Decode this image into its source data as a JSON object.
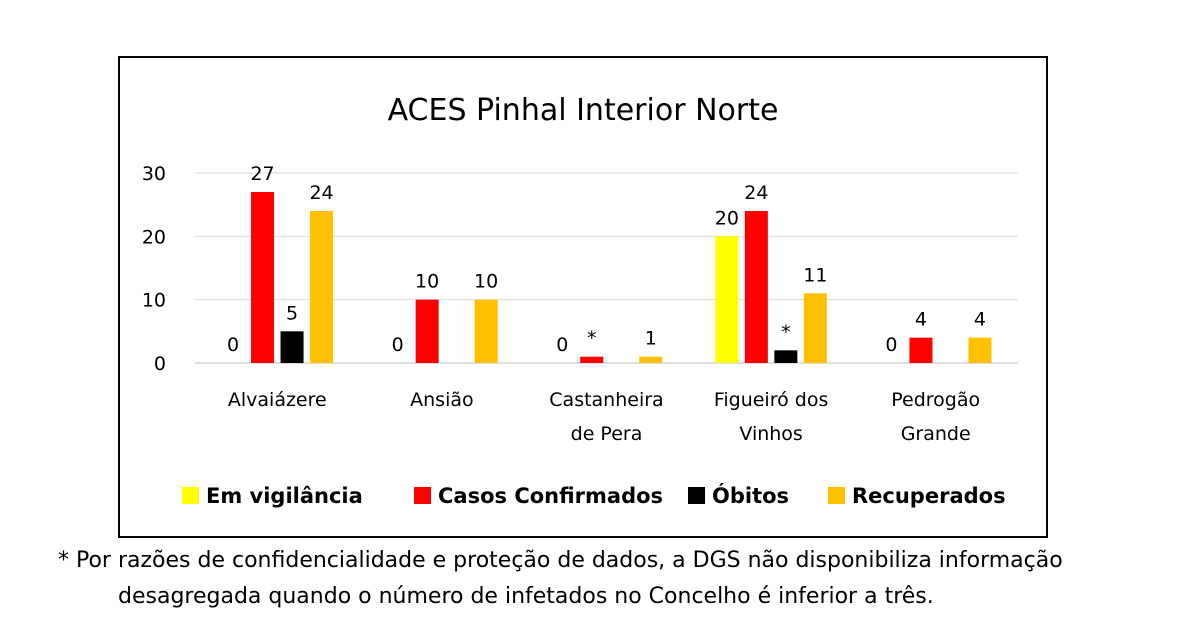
{
  "chart_data": {
    "type": "bar",
    "title": "ACES Pinhal Interior Norte",
    "categories": [
      "Alvaiázere",
      "Ansião",
      "Castanheira de Pera",
      "Figueiró dos Vinhos",
      "Pedrogão Grande"
    ],
    "category_lines": [
      [
        "Alvaiázere"
      ],
      [
        "Ansião"
      ],
      [
        "Castanheira",
        "de Pera"
      ],
      [
        "Figueiró dos",
        "Vinhos"
      ],
      [
        "Pedrogão",
        "Grande"
      ]
    ],
    "series": [
      {
        "name": "Em vigilância",
        "color": "#ffff00",
        "values": [
          0,
          0,
          0,
          20,
          0
        ],
        "labels": [
          "0",
          "0",
          "0",
          "20",
          "0"
        ]
      },
      {
        "name": "Casos Confirmados",
        "color": "#ff0000",
        "values": [
          27,
          10,
          1,
          24,
          4
        ],
        "labels": [
          "27",
          "10",
          "*",
          "24",
          "4"
        ]
      },
      {
        "name": "Óbitos",
        "color": "#000000",
        "values": [
          5,
          0,
          0,
          2,
          0
        ],
        "labels": [
          "5",
          "",
          "",
          "*",
          ""
        ]
      },
      {
        "name": "Recuperados",
        "color": "#ffc000",
        "values": [
          24,
          10,
          1,
          11,
          4
        ],
        "labels": [
          "24",
          "10",
          "1",
          "11",
          "4"
        ]
      }
    ],
    "y_ticks": [
      0,
      10,
      20,
      30
    ],
    "ylim": [
      0,
      30
    ],
    "grid": true,
    "legend_position": "bottom"
  },
  "footnote": {
    "line1": "* Por razões de confidencialidade e proteção de dados, a DGS não disponibiliza informação",
    "line2": "desagregada quando o número de infetados no Concelho é inferior a três."
  }
}
